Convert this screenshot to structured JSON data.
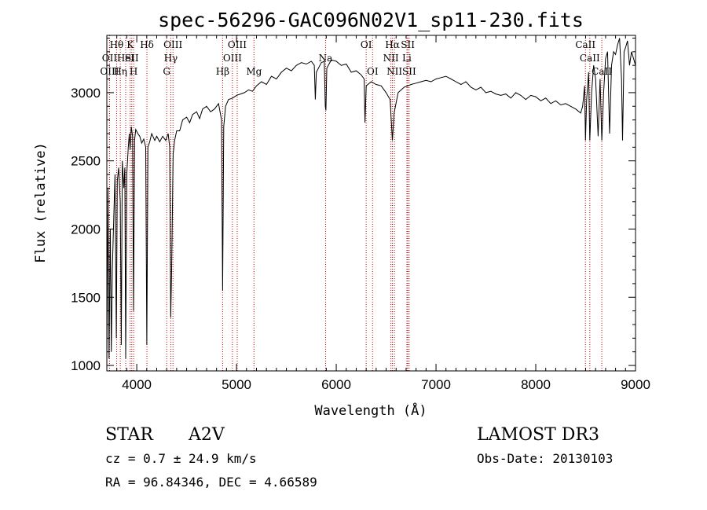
{
  "chart_data": {
    "type": "line",
    "title": "spec-56296-GAC096N02V1_sp11-230.fits",
    "xlabel": "Wavelength (Å)",
    "ylabel": "Flux (relative)",
    "xlim": [
      3700,
      9000
    ],
    "ylim": [
      960,
      3420
    ],
    "x_ticks": [
      4000,
      5000,
      6000,
      7000,
      8000,
      9000
    ],
    "y_ticks": [
      1000,
      1500,
      2000,
      2500,
      3000
    ],
    "grid": false,
    "series": [
      {
        "color": "#000000",
        "points": [
          [
            3700,
            1000
          ],
          [
            3712,
            2300
          ],
          [
            3722,
            1050
          ],
          [
            3735,
            2000
          ],
          [
            3745,
            1100
          ],
          [
            3755,
            1700
          ],
          [
            3770,
            2100
          ],
          [
            3782,
            2400
          ],
          [
            3795,
            1200
          ],
          [
            3805,
            2350
          ],
          [
            3818,
            2450
          ],
          [
            3835,
            2200
          ],
          [
            3845,
            1150
          ],
          [
            3855,
            2500
          ],
          [
            3870,
            2300
          ],
          [
            3880,
            2450
          ],
          [
            3889,
            1050
          ],
          [
            3900,
            2400
          ],
          [
            3915,
            2600
          ],
          [
            3925,
            2700
          ],
          [
            3933,
            2580
          ],
          [
            3945,
            2750
          ],
          [
            3958,
            2680
          ],
          [
            3968,
            1400
          ],
          [
            3978,
            2650
          ],
          [
            3990,
            2730
          ],
          [
            4010,
            2700
          ],
          [
            4030,
            2680
          ],
          [
            4050,
            2630
          ],
          [
            4070,
            2660
          ],
          [
            4090,
            2600
          ],
          [
            4101,
            1150
          ],
          [
            4112,
            2600
          ],
          [
            4130,
            2640
          ],
          [
            4150,
            2700
          ],
          [
            4180,
            2650
          ],
          [
            4200,
            2680
          ],
          [
            4230,
            2640
          ],
          [
            4260,
            2680
          ],
          [
            4290,
            2650
          ],
          [
            4315,
            2700
          ],
          [
            4330,
            2600
          ],
          [
            4340,
            1350
          ],
          [
            4350,
            1700
          ],
          [
            4365,
            2550
          ],
          [
            4380,
            2650
          ],
          [
            4400,
            2720
          ],
          [
            4430,
            2720
          ],
          [
            4460,
            2800
          ],
          [
            4500,
            2820
          ],
          [
            4530,
            2780
          ],
          [
            4560,
            2840
          ],
          [
            4600,
            2860
          ],
          [
            4630,
            2810
          ],
          [
            4660,
            2880
          ],
          [
            4700,
            2900
          ],
          [
            4740,
            2860
          ],
          [
            4780,
            2880
          ],
          [
            4820,
            2920
          ],
          [
            4850,
            2800
          ],
          [
            4861,
            1550
          ],
          [
            4872,
            2750
          ],
          [
            4890,
            2900
          ],
          [
            4920,
            2950
          ],
          [
            4960,
            2960
          ],
          [
            5000,
            2980
          ],
          [
            5040,
            2990
          ],
          [
            5080,
            3000
          ],
          [
            5120,
            3020
          ],
          [
            5160,
            3010
          ],
          [
            5200,
            3050
          ],
          [
            5250,
            3080
          ],
          [
            5300,
            3060
          ],
          [
            5350,
            3120
          ],
          [
            5400,
            3100
          ],
          [
            5450,
            3150
          ],
          [
            5500,
            3180
          ],
          [
            5550,
            3160
          ],
          [
            5600,
            3200
          ],
          [
            5650,
            3220
          ],
          [
            5700,
            3210
          ],
          [
            5750,
            3230
          ],
          [
            5780,
            3200
          ],
          [
            5790,
            2950
          ],
          [
            5800,
            3150
          ],
          [
            5850,
            3220
          ],
          [
            5880,
            3230
          ],
          [
            5890,
            2900
          ],
          [
            5896,
            2870
          ],
          [
            5905,
            3180
          ],
          [
            5950,
            3240
          ],
          [
            6000,
            3230
          ],
          [
            6050,
            3200
          ],
          [
            6100,
            3210
          ],
          [
            6150,
            3150
          ],
          [
            6200,
            3160
          ],
          [
            6250,
            3130
          ],
          [
            6280,
            3100
          ],
          [
            6288,
            2780
          ],
          [
            6300,
            3050
          ],
          [
            6350,
            3080
          ],
          [
            6400,
            3060
          ],
          [
            6450,
            3050
          ],
          [
            6500,
            3000
          ],
          [
            6540,
            2950
          ],
          [
            6563,
            2650
          ],
          [
            6580,
            2850
          ],
          [
            6620,
            3000
          ],
          [
            6680,
            3040
          ],
          [
            6750,
            3060
          ],
          [
            6800,
            3070
          ],
          [
            6850,
            3080
          ],
          [
            6900,
            3090
          ],
          [
            6950,
            3080
          ],
          [
            7000,
            3100
          ],
          [
            7050,
            3110
          ],
          [
            7100,
            3120
          ],
          [
            7150,
            3100
          ],
          [
            7200,
            3080
          ],
          [
            7250,
            3060
          ],
          [
            7300,
            3080
          ],
          [
            7350,
            3040
          ],
          [
            7400,
            3020
          ],
          [
            7450,
            3040
          ],
          [
            7500,
            3000
          ],
          [
            7550,
            3010
          ],
          [
            7600,
            2990
          ],
          [
            7650,
            2980
          ],
          [
            7700,
            2990
          ],
          [
            7750,
            2960
          ],
          [
            7800,
            3000
          ],
          [
            7850,
            2980
          ],
          [
            7900,
            2950
          ],
          [
            7950,
            2980
          ],
          [
            8000,
            2970
          ],
          [
            8050,
            2940
          ],
          [
            8100,
            2960
          ],
          [
            8150,
            2920
          ],
          [
            8200,
            2940
          ],
          [
            8250,
            2910
          ],
          [
            8300,
            2920
          ],
          [
            8350,
            2900
          ],
          [
            8400,
            2880
          ],
          [
            8450,
            2850
          ],
          [
            8470,
            2900
          ],
          [
            8490,
            3050
          ],
          [
            8498,
            2650
          ],
          [
            8510,
            2950
          ],
          [
            8530,
            3150
          ],
          [
            8542,
            2650
          ],
          [
            8560,
            3000
          ],
          [
            8580,
            3200
          ],
          [
            8600,
            3100
          ],
          [
            8625,
            2680
          ],
          [
            8645,
            3100
          ],
          [
            8662,
            2650
          ],
          [
            8680,
            3000
          ],
          [
            8700,
            3250
          ],
          [
            8720,
            3300
          ],
          [
            8740,
            2700
          ],
          [
            8760,
            3200
          ],
          [
            8780,
            3300
          ],
          [
            8800,
            3280
          ],
          [
            8820,
            3350
          ],
          [
            8840,
            3400
          ],
          [
            8860,
            3100
          ],
          [
            8870,
            2650
          ],
          [
            8885,
            3300
          ],
          [
            8900,
            3330
          ],
          [
            8920,
            3380
          ],
          [
            8940,
            3200
          ],
          [
            8960,
            3300
          ],
          [
            8980,
            3250
          ],
          [
            9000,
            3200
          ]
        ]
      }
    ],
    "lines": [
      {
        "label": "OII",
        "x": 3727,
        "row": 1
      },
      {
        "label": "OIII",
        "x": 3727,
        "row": 2
      },
      {
        "label": "Hθ",
        "x": 3798,
        "row": 0
      },
      {
        "label": "Hη",
        "x": 3835,
        "row": 2
      },
      {
        "label": "HeI",
        "x": 3889,
        "row": 1
      },
      {
        "label": "K",
        "x": 3934,
        "row": 0
      },
      {
        "label": "SII",
        "x": 3950,
        "row": 1
      },
      {
        "label": "H",
        "x": 3969,
        "row": 2
      },
      {
        "label": "Hδ",
        "x": 4102,
        "row": 0
      },
      {
        "label": "G",
        "x": 4300,
        "row": 2
      },
      {
        "label": "OIII",
        "x": 4363,
        "row": 0
      },
      {
        "label": "Hγ",
        "x": 4341,
        "row": 1
      },
      {
        "label": "Hβ",
        "x": 4861,
        "row": 2
      },
      {
        "label": "OIII",
        "x": 4959,
        "row": 1
      },
      {
        "label": "OIII",
        "x": 5007,
        "row": 0
      },
      {
        "label": "Mg",
        "x": 5175,
        "row": 2
      },
      {
        "label": "Na",
        "x": 5893,
        "row": 1
      },
      {
        "label": "OI",
        "x": 6300,
        "row": 0
      },
      {
        "label": "OI",
        "x": 6364,
        "row": 2
      },
      {
        "label": "Hα",
        "x": 6563,
        "row": 0
      },
      {
        "label": "NII",
        "x": 6548,
        "row": 1
      },
      {
        "label": "NII",
        "x": 6583,
        "row": 2
      },
      {
        "label": "SII",
        "x": 6717,
        "row": 0
      },
      {
        "label": "Li",
        "x": 6708,
        "row": 1
      },
      {
        "label": "SII",
        "x": 6731,
        "row": 2
      },
      {
        "label": "CaII",
        "x": 8498,
        "row": 0
      },
      {
        "label": "CaII",
        "x": 8542,
        "row": 1
      },
      {
        "label": "CaII",
        "x": 8662,
        "row": 2
      }
    ]
  },
  "info": {
    "class": "STAR",
    "subclass": "A2V",
    "survey": "LAMOST DR3",
    "cz": "cz = 0.7 ± 24.9 km/s",
    "obs_date": "Obs-Date: 20130103",
    "radec": "RA =  96.84346, DEC =   4.66589"
  }
}
